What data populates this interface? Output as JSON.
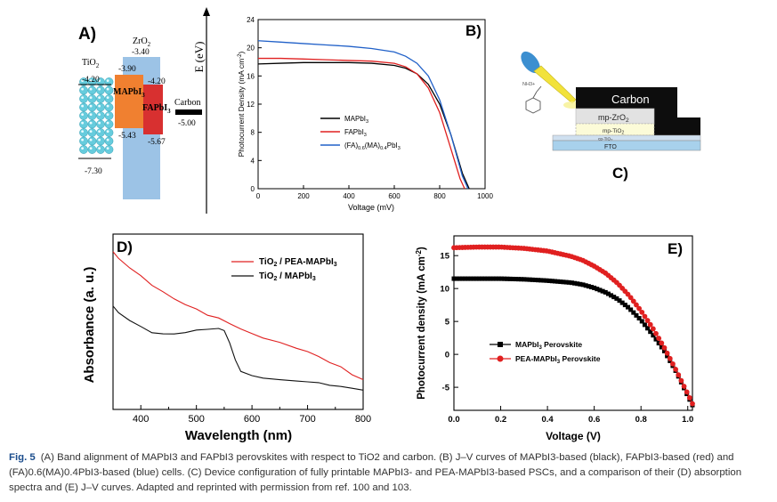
{
  "panels": {
    "A": {
      "label": "A)",
      "y_axis_label": "E (eV)",
      "materials": [
        {
          "name": "TiO2",
          "name_main": "TiO",
          "name_sub": "2",
          "top": "-4.20",
          "bottom": "-7.30"
        },
        {
          "name": "ZrO2",
          "name_main": "ZrO",
          "name_sub": "2",
          "top": "-3.40",
          "bottom": ""
        },
        {
          "name": "MAPbI3",
          "name_main": "MAPbI",
          "name_sub": "3",
          "top": "-3.90",
          "bottom": "-5.43"
        },
        {
          "name": "FAPbI3",
          "name_main": "FAPbI",
          "name_sub": "3",
          "top": "-4.20",
          "bottom": "-5.67"
        },
        {
          "name": "Carbon",
          "name_main": "Carbon",
          "name_sub": "",
          "top": "",
          "bottom": "-5.00"
        }
      ],
      "colors": {
        "tio2": "#66ccdd",
        "zro2": "#9cc3e6",
        "mapbi": "#f08030",
        "fapbi": "#d83030",
        "carbon": "#000000"
      }
    },
    "B": {
      "label": "B)",
      "legend": [
        {
          "main": "MAPbI",
          "sub": "3",
          "tail": "",
          "color": "#000000"
        },
        {
          "main": "FAPbI",
          "sub": "3",
          "tail": "",
          "color": "#e02020"
        },
        {
          "main": "(FA)",
          "sub": "0.6",
          "mid": "(MA)",
          "sub2": "0.4",
          "tail": "PbI",
          "sub3": "3",
          "color": "#2060c8"
        }
      ]
    },
    "C": {
      "label": "C)",
      "layers": [
        "Carbon",
        "mp-ZrO2",
        "mp-TiO2",
        "cp-TiO2",
        "FTO"
      ],
      "layer_labels": {
        "carbon": "Carbon",
        "zro2_main": "mp-ZrO",
        "zro2_sub": "2",
        "tio2_main": "mp-TiO",
        "tio2_sub": "2",
        "cp_main": "cp-TiO",
        "cp_sub": "2",
        "fto": "FTO"
      },
      "molecule_label": "NH3+"
    },
    "D": {
      "label": "D)",
      "legend": [
        {
          "main": "TiO",
          "sub": "2",
          "tail": " / PEA-MAPbI",
          "sub2": "3",
          "color": "#e02020"
        },
        {
          "main": "TiO",
          "sub": "2",
          "tail": " / MAPbI",
          "sub2": "3",
          "color": "#111111"
        }
      ]
    },
    "E": {
      "label": "E)",
      "legend": [
        {
          "main": "MAPbI",
          "sub": "3",
          "tail": " Perovskite",
          "color": "#000000",
          "marker": "square"
        },
        {
          "main": "PEA-MAPbI",
          "sub": "3",
          "tail": " Perovskite",
          "color": "#e02020",
          "marker": "circle"
        }
      ]
    }
  },
  "chart_data": [
    {
      "panel": "B",
      "type": "line",
      "xlabel": "Voltage (mV)",
      "ylabel_main": "Photocurrent Density (mA cm",
      "ylabel_sup": "-2",
      "ylabel_tail": ")",
      "xlim": [
        0,
        1000
      ],
      "ylim": [
        0,
        24
      ],
      "xticks": [
        0,
        200,
        400,
        600,
        800,
        1000
      ],
      "yticks": [
        0,
        4,
        8,
        12,
        16,
        20,
        24
      ],
      "series": [
        {
          "name": "MAPbI3",
          "color": "#000000",
          "x": [
            0,
            100,
            200,
            300,
            400,
            500,
            600,
            650,
            700,
            750,
            800,
            850,
            900,
            930
          ],
          "y": [
            17.7,
            17.8,
            17.9,
            17.9,
            17.9,
            17.8,
            17.5,
            17.1,
            16.3,
            14.8,
            12.0,
            7.6,
            2.2,
            0
          ]
        },
        {
          "name": "FAPbI3",
          "color": "#e02020",
          "x": [
            0,
            100,
            200,
            300,
            400,
            500,
            600,
            650,
            700,
            750,
            800,
            850,
            890,
            910
          ],
          "y": [
            18.5,
            18.5,
            18.4,
            18.3,
            18.2,
            18.1,
            17.8,
            17.3,
            16.3,
            14.3,
            10.8,
            5.6,
            1.4,
            0
          ]
        },
        {
          "name": "(FA)0.6(MA)0.4PbI3",
          "color": "#2060c8",
          "x": [
            0,
            100,
            200,
            300,
            400,
            500,
            600,
            650,
            700,
            750,
            800,
            850,
            900,
            925
          ],
          "y": [
            21.0,
            20.8,
            20.6,
            20.4,
            20.2,
            19.9,
            19.4,
            18.8,
            17.8,
            16.0,
            12.6,
            7.6,
            1.8,
            0
          ]
        }
      ]
    },
    {
      "panel": "D",
      "type": "line",
      "xlabel": "Wavelength (nm)",
      "ylabel": "Absorbance (a. u.)",
      "xlim": [
        350,
        800
      ],
      "xticks": [
        400,
        500,
        600,
        700,
        800
      ],
      "ylim": [
        0,
        1
      ],
      "series": [
        {
          "name": "TiO2 / PEA-MAPbI3",
          "color": "#e02020",
          "x": [
            350,
            360,
            380,
            400,
            420,
            440,
            460,
            480,
            500,
            520,
            540,
            560,
            580,
            600,
            620,
            650,
            680,
            700,
            720,
            740,
            760,
            780,
            800
          ],
          "y": [
            0.9,
            0.86,
            0.81,
            0.76,
            0.71,
            0.67,
            0.63,
            0.6,
            0.57,
            0.54,
            0.52,
            0.49,
            0.46,
            0.43,
            0.41,
            0.38,
            0.35,
            0.33,
            0.3,
            0.27,
            0.24,
            0.2,
            0.17
          ]
        },
        {
          "name": "TiO2 / MAPbI3",
          "color": "#111111",
          "x": [
            350,
            360,
            380,
            400,
            420,
            440,
            460,
            480,
            500,
            520,
            540,
            550,
            560,
            570,
            580,
            600,
            620,
            650,
            680,
            700,
            720,
            740,
            760,
            780,
            800
          ],
          "y": [
            0.59,
            0.55,
            0.51,
            0.47,
            0.44,
            0.43,
            0.43,
            0.44,
            0.45,
            0.46,
            0.46,
            0.45,
            0.38,
            0.28,
            0.22,
            0.19,
            0.18,
            0.17,
            0.16,
            0.16,
            0.15,
            0.14,
            0.13,
            0.12,
            0.11
          ]
        }
      ]
    },
    {
      "panel": "E",
      "type": "scatter",
      "xlabel": "Voltage (V)",
      "ylabel_main": "Photocurrent density (mA cm",
      "ylabel_sup": "-2",
      "ylabel_tail": ")",
      "xlim": [
        0.0,
        1.02
      ],
      "ylim": [
        -8.5,
        18
      ],
      "xticks": [
        0.0,
        0.2,
        0.4,
        0.6,
        0.8,
        1.0
      ],
      "xtick_labels": [
        "0.0",
        "0.2",
        "0.4",
        "0.6",
        "0.8",
        "1.0"
      ],
      "yticks": [
        -5,
        0,
        5,
        10,
        15
      ],
      "series": [
        {
          "name": "MAPbI3 Perovskite",
          "color": "#000000",
          "marker": "square",
          "x": [
            0,
            0.1,
            0.2,
            0.3,
            0.4,
            0.5,
            0.55,
            0.6,
            0.65,
            0.7,
            0.75,
            0.8,
            0.85,
            0.9,
            0.95,
            1.0,
            1.02
          ],
          "y": [
            11.5,
            11.5,
            11.5,
            11.4,
            11.2,
            10.9,
            10.6,
            10.1,
            9.4,
            8.4,
            7.0,
            5.2,
            3.0,
            0.5,
            -2.6,
            -6.3,
            -7.7
          ]
        },
        {
          "name": "PEA-MAPbI3 Perovskite",
          "color": "#e02020",
          "marker": "circle",
          "x": [
            0,
            0.1,
            0.2,
            0.3,
            0.4,
            0.5,
            0.55,
            0.6,
            0.65,
            0.7,
            0.75,
            0.8,
            0.85,
            0.9,
            0.95,
            1.0,
            1.02
          ],
          "y": [
            16.2,
            16.3,
            16.3,
            16.1,
            15.7,
            14.9,
            14.3,
            13.4,
            12.3,
            10.8,
            8.9,
            6.6,
            4.0,
            1.0,
            -2.4,
            -6.0,
            -7.5
          ]
        }
      ]
    }
  ],
  "caption": {
    "fig": "Fig. 5",
    "text": "(A) Band alignment of MAPbI3 and FAPbI3 perovskites with respect to TiO2 and carbon. (B) J–V curves of MAPbI3-based (black), FAPbI3-based (red) and (FA)0.6(MA)0.4PbI3-based (blue) cells. (C) Device configuration of fully printable MAPbI3- and PEA-MAPbI3-based PSCs, and a comparison of their (D) absorption spectra and (E) J–V curves. Adapted and reprinted with permission from ref. 100 and 103."
  }
}
